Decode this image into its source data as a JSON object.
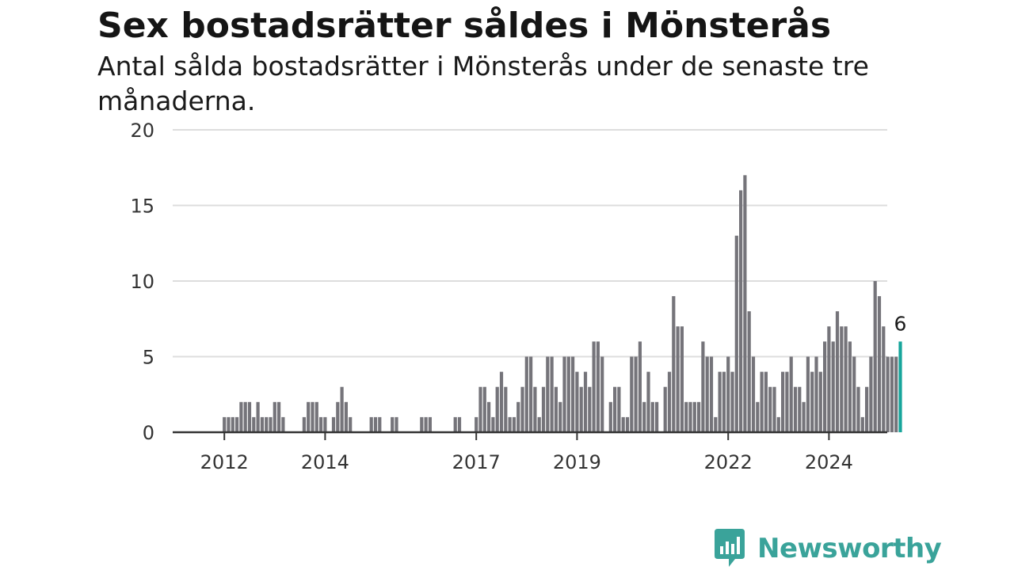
{
  "header": {
    "title": "Sex bostadsrätter såldes i Mönsterås",
    "subtitle": "Antal sålda bostadsrätter i Mönsterås under de senaste tre månaderna."
  },
  "brand": {
    "name": "Newsworthy"
  },
  "colors": {
    "bar": "#75747a",
    "highlight": "#17a59b",
    "grid": "#dddddd",
    "axis": "#333333",
    "brand": "#3aa39a"
  },
  "chart_data": {
    "type": "bar",
    "title": "Sex bostadsrätter såldes i Mönsterås",
    "xlabel": "",
    "ylabel": "",
    "ylim": [
      0,
      20
    ],
    "y_ticks": [
      0,
      5,
      10,
      15,
      20
    ],
    "x_ticks": [
      {
        "label": "2012",
        "date": "2012-01"
      },
      {
        "label": "2014",
        "date": "2014-01"
      },
      {
        "label": "2017",
        "date": "2017-01"
      },
      {
        "label": "2019",
        "date": "2019-01"
      },
      {
        "label": "2022",
        "date": "2022-01"
      },
      {
        "label": "2024",
        "date": "2024-01"
      }
    ],
    "grid": true,
    "start": "2011-11",
    "frequency": "monthly",
    "values": [
      0,
      0,
      1,
      1,
      1,
      1,
      2,
      2,
      2,
      1,
      2,
      1,
      1,
      1,
      2,
      2,
      1,
      0,
      0,
      0,
      0,
      1,
      2,
      2,
      2,
      1,
      1,
      0,
      1,
      2,
      3,
      2,
      1,
      0,
      0,
      0,
      0,
      1,
      1,
      1,
      0,
      0,
      1,
      1,
      0,
      0,
      0,
      0,
      0,
      1,
      1,
      1,
      0,
      0,
      0,
      0,
      0,
      1,
      1,
      0,
      0,
      0,
      1,
      3,
      3,
      2,
      1,
      3,
      4,
      3,
      1,
      1,
      2,
      3,
      5,
      5,
      3,
      1,
      3,
      5,
      5,
      3,
      2,
      5,
      5,
      5,
      4,
      3,
      4,
      3,
      6,
      6,
      5,
      0,
      2,
      3,
      3,
      1,
      1,
      5,
      5,
      6,
      2,
      4,
      2,
      2,
      0,
      3,
      4,
      9,
      7,
      7,
      2,
      2,
      2,
      2,
      6,
      5,
      5,
      1,
      4,
      4,
      5,
      4,
      13,
      16,
      17,
      8,
      5,
      2,
      4,
      4,
      3,
      3,
      1,
      4,
      4,
      5,
      3,
      3,
      2,
      5,
      4,
      5,
      4,
      6,
      7,
      6,
      8,
      7,
      7,
      6,
      5,
      3,
      1,
      3,
      5,
      10,
      9,
      7,
      5,
      5,
      5,
      6
    ],
    "highlight_last": true,
    "last_value_label": "6"
  }
}
